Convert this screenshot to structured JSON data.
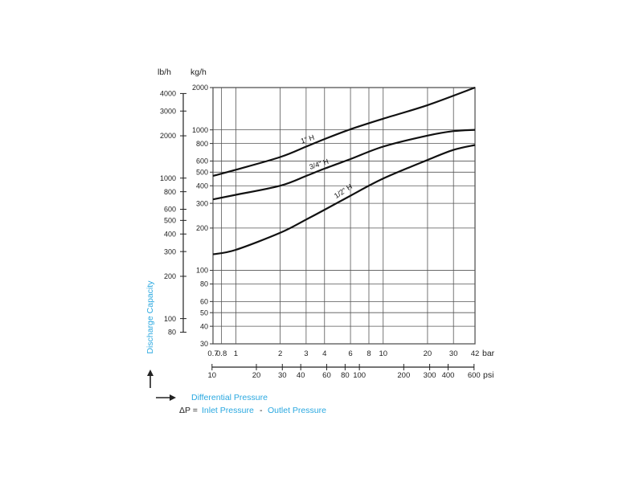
{
  "chart_data": {
    "type": "line",
    "title": "",
    "xscale": "log",
    "yscale": "log",
    "xlim": [
      0.7,
      42
    ],
    "ylim": [
      30,
      2000
    ],
    "grid": true,
    "x_axis": {
      "unit": "bar",
      "ticks": [
        0.7,
        0.8,
        1,
        2,
        3,
        4,
        6,
        8,
        10,
        20,
        30,
        42
      ],
      "tick_labels": [
        "0.7",
        "0.8",
        "1",
        "2",
        "3",
        "4",
        "6",
        "8",
        "10",
        "20",
        "30",
        "42"
      ]
    },
    "x_axis_secondary": {
      "unit": "psi",
      "ticks": [
        10,
        20,
        30,
        40,
        60,
        80,
        100,
        200,
        300,
        400,
        600
      ],
      "tick_labels": [
        "10",
        "20",
        "30",
        "40",
        "60",
        "80",
        "100",
        "200",
        "300",
        "400",
        "600"
      ]
    },
    "y_axis": {
      "unit": "kg/h",
      "ticks": [
        30,
        40,
        50,
        60,
        80,
        100,
        200,
        300,
        400,
        500,
        600,
        800,
        1000,
        2000
      ],
      "tick_labels": [
        "30",
        "40",
        "50",
        "60",
        "80",
        "100",
        "200",
        "300",
        "400",
        "500",
        "600",
        "800",
        "1000",
        "2000"
      ]
    },
    "y_axis_secondary": {
      "unit": "lb/h",
      "ticks": [
        80,
        100,
        200,
        300,
        400,
        500,
        600,
        800,
        1000,
        2000,
        3000,
        4000
      ],
      "tick_labels": [
        "80",
        "100",
        "200",
        "300",
        "400",
        "500",
        "600",
        "800",
        "1000",
        "2000",
        "3000",
        "4000"
      ]
    },
    "ylabel": "Discharge Capacity",
    "xlabel": "Differential Pressure",
    "formula": {
      "symbol": "ΔP =",
      "inlet": "Inlet Pressure",
      "sep": "-",
      "outlet": "Outlet Pressure"
    },
    "series": [
      {
        "name": "1\" H",
        "x": [
          0.7,
          1,
          2,
          3,
          4,
          6,
          10,
          20,
          42
        ],
        "y": [
          470,
          520,
          640,
          760,
          860,
          1010,
          1200,
          1500,
          2000
        ]
      },
      {
        "name": "3/4\" H",
        "x": [
          0.7,
          1,
          2,
          3,
          4,
          6,
          10,
          20,
          30,
          42
        ],
        "y": [
          320,
          345,
          400,
          470,
          530,
          620,
          760,
          910,
          980,
          1000
        ]
      },
      {
        "name": "1/2\" H",
        "x": [
          0.7,
          1,
          2,
          3,
          4,
          6,
          10,
          20,
          30,
          42
        ],
        "y": [
          130,
          140,
          185,
          230,
          270,
          340,
          450,
          610,
          720,
          780
        ]
      }
    ]
  }
}
